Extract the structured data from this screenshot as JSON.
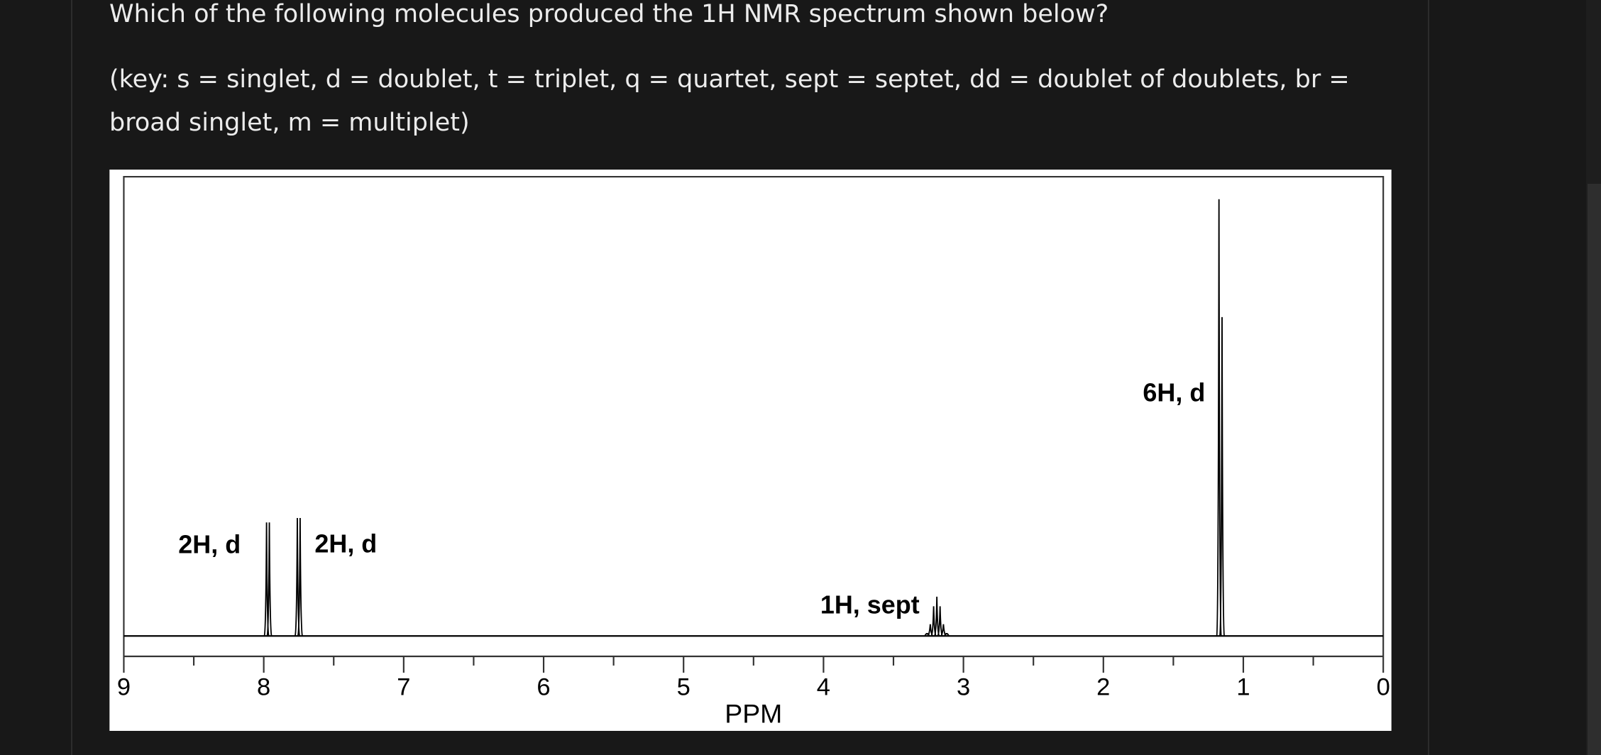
{
  "question": {
    "text": "Which of the following molecules produced the 1H NMR spectrum shown below?",
    "key": "(key: s = singlet, d = doublet, t = triplet, q = quartet, sept = septet, dd = doublet of doublets, br = broad singlet, m = multiplet)"
  },
  "chart_data": {
    "type": "spectrum",
    "xlabel": "PPM",
    "xlim": [
      9,
      0
    ],
    "xticks": [
      9,
      8,
      7,
      6,
      5,
      4,
      3,
      2,
      1,
      0
    ],
    "xminorticks": [
      8.5,
      7.5,
      6.5,
      5.5,
      4.5,
      3.5,
      2.5,
      1.5,
      0.5
    ],
    "ylim": [
      0,
      100
    ],
    "color": "#000000",
    "peaks": [
      {
        "label": "2H, d",
        "lines": [
          7.98,
          7.96
        ],
        "heights": [
          26,
          26
        ]
      },
      {
        "label": "2H, d",
        "lines": [
          7.76,
          7.74
        ],
        "heights": [
          27,
          27
        ]
      },
      {
        "label": "1H, sept",
        "lines": [
          3.26,
          3.237,
          3.213,
          3.19,
          3.167,
          3.143,
          3.12
        ],
        "heights": [
          0.5,
          2.7,
          6.8,
          9,
          6.8,
          2.7,
          0.5
        ]
      },
      {
        "label": "6H, d",
        "lines": [
          1.174,
          1.152
        ],
        "heights": [
          100,
          73
        ]
      }
    ]
  }
}
